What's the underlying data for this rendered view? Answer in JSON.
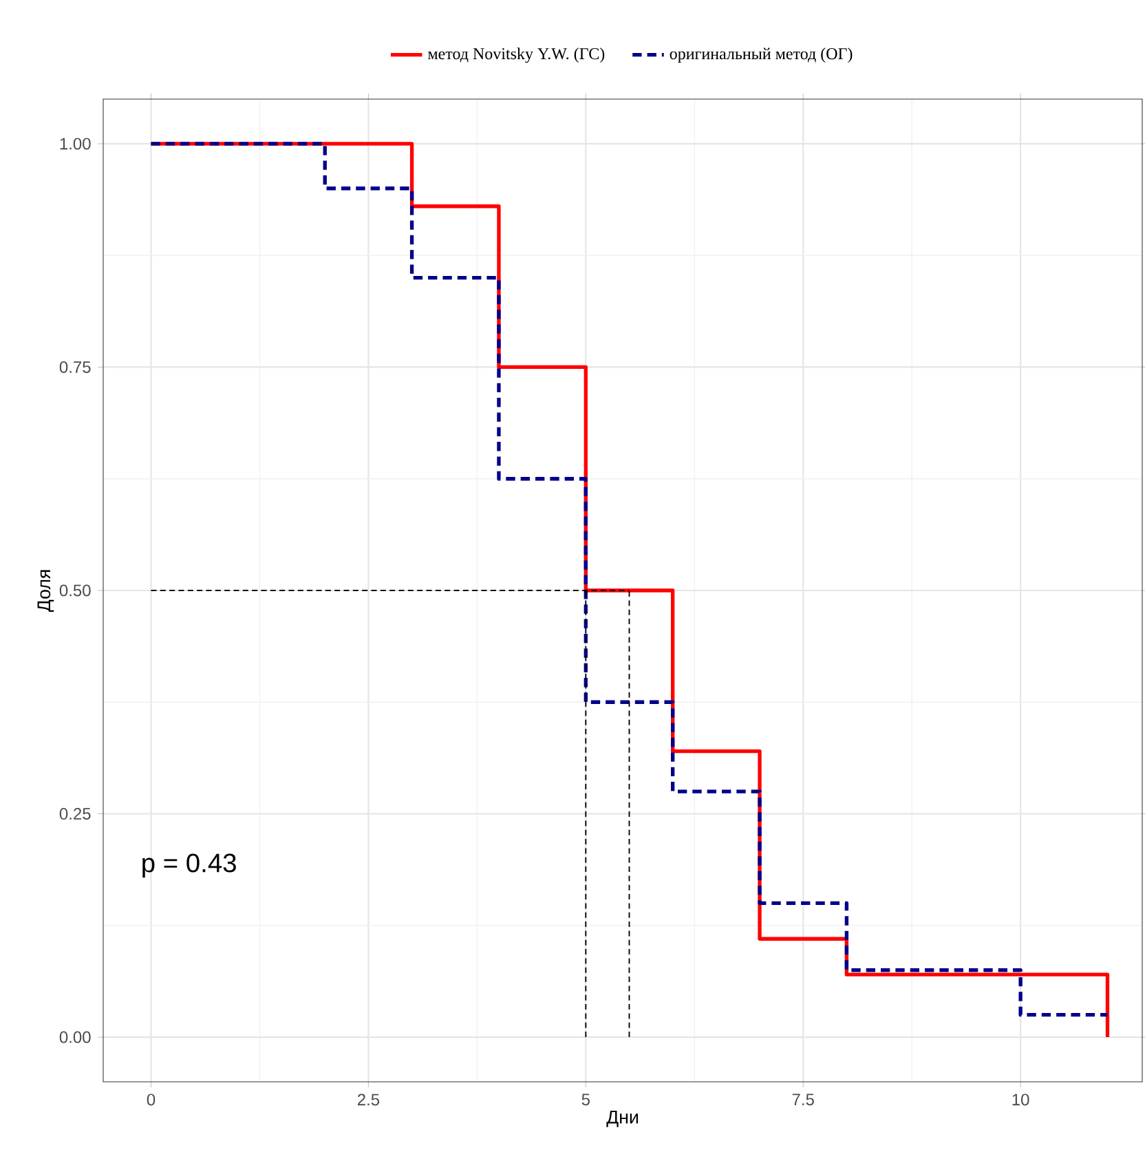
{
  "chart_data": {
    "type": "step",
    "xlabel": "Дни",
    "ylabel": "Доля",
    "xlim": [
      -0.55,
      11.4
    ],
    "ylim": [
      -0.05,
      1.05
    ],
    "xticks": [
      0,
      2.5,
      5,
      7.5,
      10
    ],
    "yticks": [
      {
        "value": 0,
        "label": "0.00"
      },
      {
        "value": 0.25,
        "label": "0.25"
      },
      {
        "value": 0.5,
        "label": "0.50"
      },
      {
        "value": 0.75,
        "label": "0.75"
      },
      {
        "value": 1,
        "label": "1.00"
      }
    ],
    "grid": true,
    "legend": "top",
    "annotations": [
      "p = 0.43"
    ],
    "series": [
      {
        "name": "метод Novitsky Y.W. (ГС)",
        "color": "#ff0000",
        "line_style": "solid",
        "x": [
          0,
          3,
          4,
          5,
          6,
          7,
          8,
          11
        ],
        "values": [
          1,
          0.93,
          0.75,
          0.5,
          0.32,
          0.11,
          0.07,
          0
        ]
      },
      {
        "name": "оригинальный метод (ОГ)",
        "color": "#00008b",
        "line_style": "dashed",
        "x": [
          0,
          2,
          3,
          4,
          5,
          6,
          7,
          8,
          10,
          11
        ],
        "values": [
          1,
          0.95,
          0.85,
          0.625,
          0.375,
          0.275,
          0.15,
          0.075,
          0.025,
          0.025
        ]
      },
      {
        "type": "line",
        "color": "#000000",
        "line_style": "dashed",
        "x": [
          0,
          5.5
        ],
        "values": [
          0.5,
          0.5
        ]
      },
      {
        "type": "line",
        "color": "#000000",
        "line_style": "dashed",
        "x": [
          5,
          5
        ],
        "values": [
          0,
          0.5
        ]
      },
      {
        "type": "line",
        "color": "#000000",
        "line_style": "dashed",
        "x": [
          5.5,
          5.5
        ],
        "values": [
          0,
          0.5
        ]
      }
    ]
  }
}
